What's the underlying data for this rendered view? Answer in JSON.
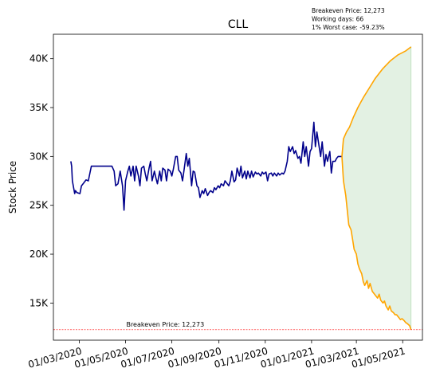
{
  "chart_data": {
    "type": "line",
    "title": "CLL",
    "ylabel": "Stock Price",
    "xlabel": "",
    "ylim": [
      11200,
      42500
    ],
    "y_ticks": [
      15000,
      20000,
      25000,
      30000,
      35000,
      40000
    ],
    "y_tick_labels": [
      "15K",
      "20K",
      "25K",
      "30K",
      "35K",
      "40K"
    ],
    "x_ticks": [
      "2020-03-01",
      "2020-05-01",
      "2020-07-01",
      "2020-09-01",
      "2020-11-01",
      "2021-01-01",
      "2021-03-01",
      "2021-05-01"
    ],
    "x_tick_labels": [
      "01/03/2020",
      "01/05/2020",
      "01/07/2020",
      "01/09/2020",
      "01/11/2020",
      "01/01/2021",
      "01/03/2021",
      "01/05/2021"
    ],
    "xlim": [
      "2020-01-27",
      "2021-05-27"
    ],
    "grid": false,
    "annotations": [
      "Breakeven Price: 12,273",
      "Working days: 66",
      "1% Worst case: -59.23%"
    ],
    "breakeven": {
      "value": 12273,
      "label": "Breakeven Price: 12,273",
      "color": "#ff0000"
    },
    "series": [
      {
        "color": "#00008b",
        "points": [
          [
            "2020-02-19",
            29500
          ],
          [
            "2020-02-20",
            29000
          ],
          [
            "2020-02-21",
            27500
          ],
          [
            "2020-02-24",
            26200
          ],
          [
            "2020-02-25",
            26500
          ],
          [
            "2020-02-27",
            26300
          ],
          [
            "2020-03-02",
            26200
          ],
          [
            "2020-03-04",
            27000
          ],
          [
            "2020-03-06",
            27200
          ],
          [
            "2020-03-10",
            27600
          ],
          [
            "2020-03-13",
            27500
          ],
          [
            "2020-03-17",
            29000
          ],
          [
            "2020-03-20",
            29000
          ],
          [
            "2020-03-24",
            29000
          ],
          [
            "2020-03-30",
            29000
          ],
          [
            "2020-04-03",
            29000
          ],
          [
            "2020-04-08",
            29000
          ],
          [
            "2020-04-13",
            29000
          ],
          [
            "2020-04-16",
            28500
          ],
          [
            "2020-04-18",
            27000
          ],
          [
            "2020-04-21",
            27200
          ],
          [
            "2020-04-24",
            28500
          ],
          [
            "2020-04-27",
            27000
          ],
          [
            "2020-04-29",
            24500
          ],
          [
            "2020-05-01",
            27500
          ],
          [
            "2020-05-04",
            28500
          ],
          [
            "2020-05-06",
            29000
          ],
          [
            "2020-05-08",
            28000
          ],
          [
            "2020-05-11",
            29000
          ],
          [
            "2020-05-13",
            27500
          ],
          [
            "2020-05-15",
            29000
          ],
          [
            "2020-05-18",
            28000
          ],
          [
            "2020-05-20",
            27000
          ],
          [
            "2020-05-22",
            28800
          ],
          [
            "2020-05-25",
            29000
          ],
          [
            "2020-05-27",
            28200
          ],
          [
            "2020-05-29",
            27500
          ],
          [
            "2020-06-01",
            28800
          ],
          [
            "2020-06-03",
            29500
          ],
          [
            "2020-06-05",
            27500
          ],
          [
            "2020-06-08",
            28500
          ],
          [
            "2020-06-10",
            27800
          ],
          [
            "2020-06-12",
            27200
          ],
          [
            "2020-06-15",
            28500
          ],
          [
            "2020-06-17",
            27500
          ],
          [
            "2020-06-19",
            28800
          ],
          [
            "2020-06-22",
            28600
          ],
          [
            "2020-06-24",
            27500
          ],
          [
            "2020-06-26",
            28700
          ],
          [
            "2020-06-29",
            28500
          ],
          [
            "2020-07-01",
            28000
          ],
          [
            "2020-07-03",
            28700
          ],
          [
            "2020-07-06",
            30000
          ],
          [
            "2020-07-08",
            30000
          ],
          [
            "2020-07-10",
            28600
          ],
          [
            "2020-07-13",
            28300
          ],
          [
            "2020-07-15",
            27500
          ],
          [
            "2020-07-17",
            28600
          ],
          [
            "2020-07-20",
            30300
          ],
          [
            "2020-07-22",
            29000
          ],
          [
            "2020-07-24",
            29800
          ],
          [
            "2020-07-27",
            27000
          ],
          [
            "2020-07-29",
            28500
          ],
          [
            "2020-07-31",
            28400
          ],
          [
            "2020-08-03",
            27000
          ],
          [
            "2020-08-05",
            26800
          ],
          [
            "2020-08-07",
            25800
          ],
          [
            "2020-08-10",
            26500
          ],
          [
            "2020-08-12",
            26200
          ],
          [
            "2020-08-14",
            26700
          ],
          [
            "2020-08-17",
            26000
          ],
          [
            "2020-08-19",
            26300
          ],
          [
            "2020-08-21",
            26500
          ],
          [
            "2020-08-24",
            26300
          ],
          [
            "2020-08-26",
            26800
          ],
          [
            "2020-08-28",
            26600
          ],
          [
            "2020-08-31",
            27000
          ],
          [
            "2020-09-02",
            26800
          ],
          [
            "2020-09-04",
            27200
          ],
          [
            "2020-09-07",
            27000
          ],
          [
            "2020-09-09",
            27500
          ],
          [
            "2020-09-11",
            27300
          ],
          [
            "2020-09-14",
            27000
          ],
          [
            "2020-09-16",
            27500
          ],
          [
            "2020-09-18",
            28500
          ],
          [
            "2020-09-21",
            27400
          ],
          [
            "2020-09-23",
            27600
          ],
          [
            "2020-09-25",
            28800
          ],
          [
            "2020-09-28",
            28000
          ],
          [
            "2020-09-30",
            29000
          ],
          [
            "2020-10-02",
            27800
          ],
          [
            "2020-10-05",
            28500
          ],
          [
            "2020-10-07",
            27700
          ],
          [
            "2020-10-09",
            28500
          ],
          [
            "2020-10-12",
            27800
          ],
          [
            "2020-10-14",
            28500
          ],
          [
            "2020-10-16",
            27900
          ],
          [
            "2020-10-19",
            28400
          ],
          [
            "2020-10-21",
            28200
          ],
          [
            "2020-10-23",
            28300
          ],
          [
            "2020-10-26",
            28000
          ],
          [
            "2020-10-28",
            28400
          ],
          [
            "2020-10-30",
            28200
          ],
          [
            "2020-11-02",
            28400
          ],
          [
            "2020-11-04",
            27500
          ],
          [
            "2020-11-06",
            28200
          ],
          [
            "2020-11-09",
            28300
          ],
          [
            "2020-11-11",
            28000
          ],
          [
            "2020-11-13",
            28300
          ],
          [
            "2020-11-16",
            28000
          ],
          [
            "2020-11-18",
            28300
          ],
          [
            "2020-11-20",
            28100
          ],
          [
            "2020-11-23",
            28300
          ],
          [
            "2020-11-25",
            28200
          ],
          [
            "2020-11-27",
            28500
          ],
          [
            "2020-11-30",
            29500
          ],
          [
            "2020-12-02",
            31000
          ],
          [
            "2020-12-04",
            30500
          ],
          [
            "2020-12-07",
            31000
          ],
          [
            "2020-12-09",
            30300
          ],
          [
            "2020-12-11",
            30600
          ],
          [
            "2020-12-14",
            29800
          ],
          [
            "2020-12-16",
            30000
          ],
          [
            "2020-12-18",
            29300
          ],
          [
            "2020-12-21",
            31500
          ],
          [
            "2020-12-23",
            30000
          ],
          [
            "2020-12-25",
            31000
          ],
          [
            "2020-12-28",
            29000
          ],
          [
            "2020-12-30",
            30500
          ],
          [
            "2021-01-01",
            30800
          ],
          [
            "2021-01-04",
            33500
          ],
          [
            "2021-01-06",
            31000
          ],
          [
            "2021-01-08",
            32500
          ],
          [
            "2021-01-11",
            31000
          ],
          [
            "2021-01-13",
            30000
          ],
          [
            "2021-01-15",
            31500
          ],
          [
            "2021-01-18",
            29000
          ],
          [
            "2021-01-20",
            30200
          ],
          [
            "2021-01-22",
            29500
          ],
          [
            "2021-01-25",
            30500
          ],
          [
            "2021-01-27",
            28300
          ],
          [
            "2021-01-29",
            29500
          ],
          [
            "2021-02-01",
            29500
          ],
          [
            "2021-02-03",
            29800
          ],
          [
            "2021-02-05",
            30000
          ],
          [
            "2021-02-08",
            30000
          ],
          [
            "2021-02-10",
            30000
          ]
        ]
      },
      {
        "color": "#ffa500",
        "points": [
          [
            "2021-02-10",
            30000
          ],
          [
            "2021-02-12",
            31800
          ],
          [
            "2021-02-16",
            32500
          ],
          [
            "2021-02-20",
            33000
          ],
          [
            "2021-02-25",
            34000
          ],
          [
            "2021-03-03",
            35000
          ],
          [
            "2021-03-10",
            36000
          ],
          [
            "2021-03-18",
            37000
          ],
          [
            "2021-03-26",
            38000
          ],
          [
            "2021-04-05",
            39000
          ],
          [
            "2021-04-15",
            39800
          ],
          [
            "2021-04-25",
            40400
          ],
          [
            "2021-05-05",
            40800
          ],
          [
            "2021-05-12",
            41200
          ]
        ]
      },
      {
        "color": "#ffa500",
        "points": [
          [
            "2021-02-10",
            30000
          ],
          [
            "2021-02-12",
            27500
          ],
          [
            "2021-02-15",
            26000
          ],
          [
            "2021-02-17",
            24500
          ],
          [
            "2021-02-19",
            23000
          ],
          [
            "2021-02-22",
            22500
          ],
          [
            "2021-02-24",
            21500
          ],
          [
            "2021-02-26",
            20500
          ],
          [
            "2021-03-01",
            20000
          ],
          [
            "2021-03-03",
            19000
          ],
          [
            "2021-03-05",
            18500
          ],
          [
            "2021-03-08",
            18000
          ],
          [
            "2021-03-10",
            17200
          ],
          [
            "2021-03-12",
            16800
          ],
          [
            "2021-03-15",
            17300
          ],
          [
            "2021-03-17",
            16500
          ],
          [
            "2021-03-19",
            17000
          ],
          [
            "2021-03-22",
            16200
          ],
          [
            "2021-03-24",
            16000
          ],
          [
            "2021-03-26",
            15800
          ],
          [
            "2021-03-29",
            15500
          ],
          [
            "2021-03-31",
            15900
          ],
          [
            "2021-04-02",
            15300
          ],
          [
            "2021-04-05",
            15000
          ],
          [
            "2021-04-07",
            15200
          ],
          [
            "2021-04-09",
            14700
          ],
          [
            "2021-04-12",
            14300
          ],
          [
            "2021-04-14",
            14700
          ],
          [
            "2021-04-16",
            14200
          ],
          [
            "2021-04-19",
            14000
          ],
          [
            "2021-04-21",
            13800
          ],
          [
            "2021-04-23",
            13800
          ],
          [
            "2021-04-26",
            13500
          ],
          [
            "2021-04-28",
            13300
          ],
          [
            "2021-04-30",
            13400
          ],
          [
            "2021-05-03",
            13200
          ],
          [
            "2021-05-05",
            13000
          ],
          [
            "2021-05-07",
            12900
          ],
          [
            "2021-05-10",
            12700
          ],
          [
            "2021-05-12",
            12273
          ]
        ]
      }
    ],
    "band": {
      "color": "#e3f1e3",
      "edge_color": "#b9deb9"
    }
  }
}
